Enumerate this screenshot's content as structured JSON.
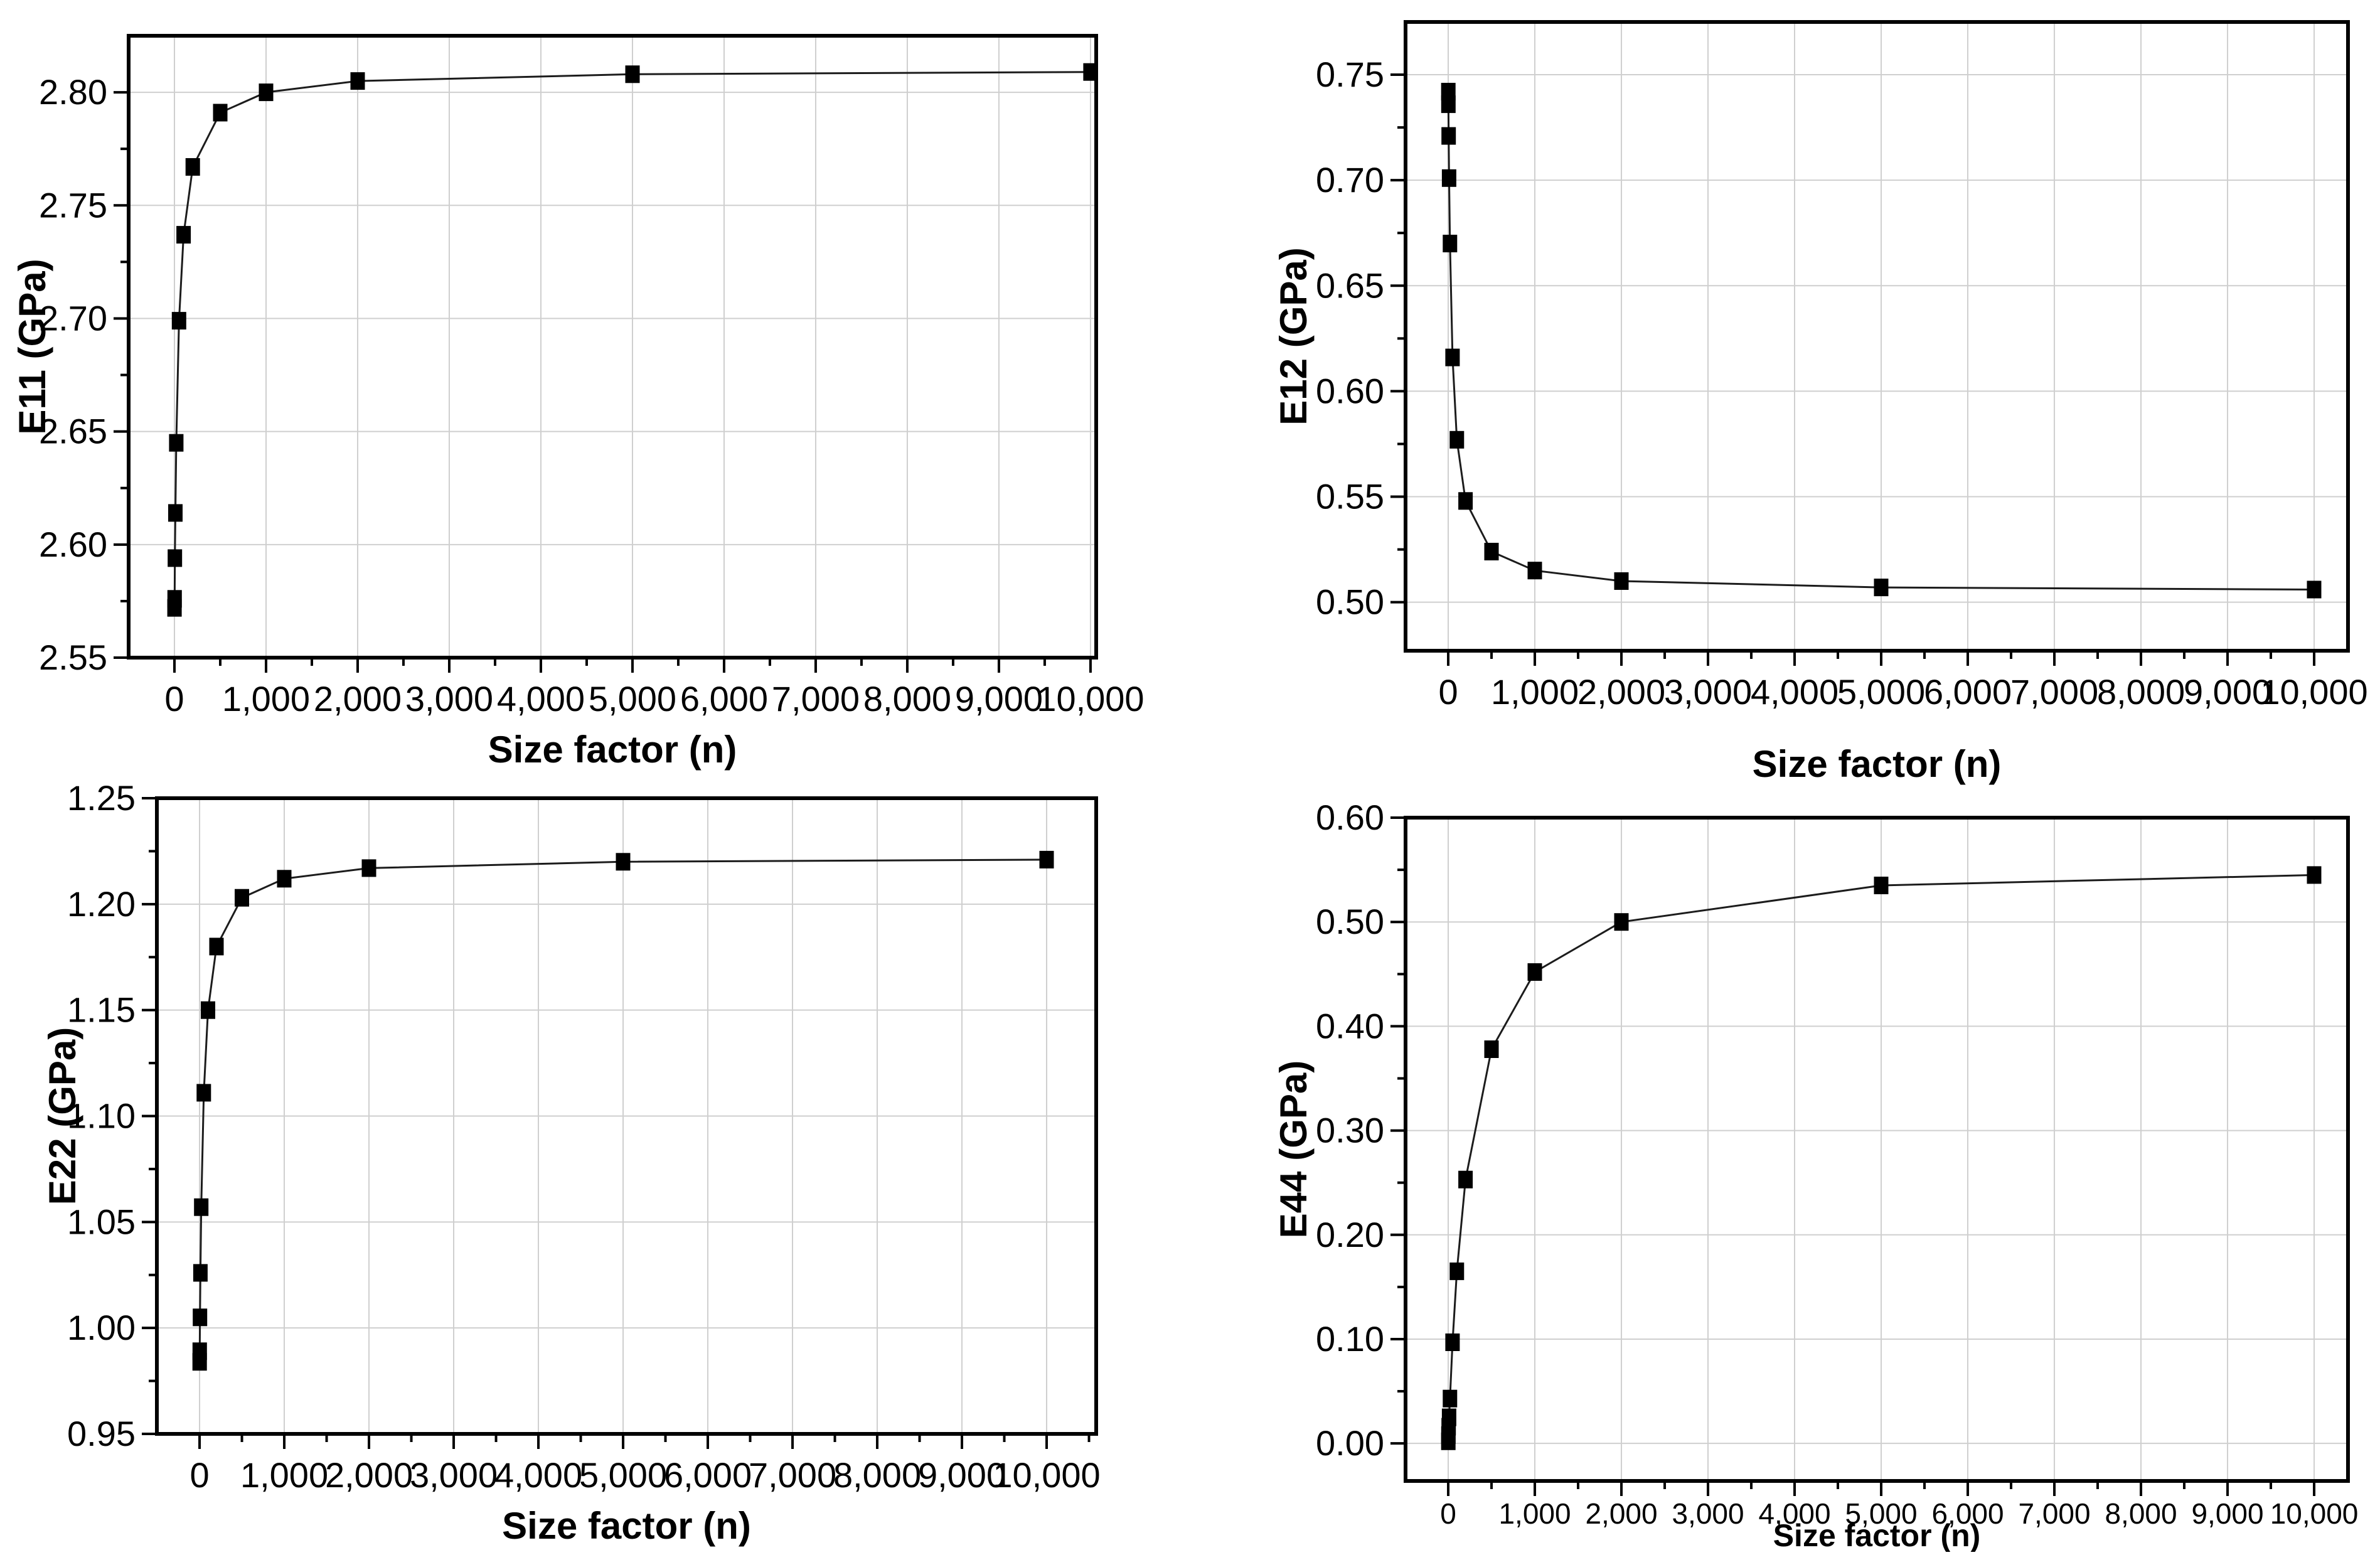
{
  "figure": {
    "background": "#ffffff",
    "panel_ids": [
      "E11",
      "E12",
      "E22",
      "E44"
    ]
  },
  "chart_data": [
    {
      "id": "E11",
      "type": "scatter",
      "title": "",
      "xlabel": "Size factor (n)",
      "ylabel": "E11 (GPa)",
      "x": [
        1,
        2,
        5,
        10,
        20,
        50,
        100,
        200,
        500,
        1000,
        2000,
        5000,
        10000
      ],
      "y": [
        2.572,
        2.576,
        2.594,
        2.614,
        2.645,
        2.699,
        2.737,
        2.767,
        2.791,
        2.8,
        2.805,
        2.808,
        2.809
      ],
      "xlim": [
        -500,
        10062
      ],
      "ylim": [
        2.55,
        2.825
      ],
      "xticks": [
        0,
        1000,
        2000,
        3000,
        4000,
        5000,
        6000,
        7000,
        8000,
        9000,
        10000
      ],
      "xtick_labels": [
        "0",
        "1,000",
        "2,000",
        "3,000",
        "4,000",
        "5,000",
        "6,000",
        "7,000",
        "8,000",
        "9,000",
        "10,000"
      ],
      "yticks": [
        2.55,
        2.6,
        2.65,
        2.7,
        2.75,
        2.8
      ],
      "ytick_labels": [
        "2.55",
        "2.60",
        "2.65",
        "2.70",
        "2.75",
        "2.80"
      ],
      "grid": true,
      "legend": null,
      "marker": "filled-square",
      "marker_color": "#000000",
      "line_color": "#1c1c1c",
      "grid_color": "#cfcfcf",
      "axis_color": "#000000"
    },
    {
      "id": "E12",
      "type": "scatter",
      "title": "",
      "xlabel": "Size factor (n)",
      "ylabel": "E12 (GPa)",
      "x": [
        1,
        2,
        5,
        10,
        20,
        50,
        100,
        200,
        500,
        1000,
        2000,
        5000,
        10000
      ],
      "y": [
        0.742,
        0.736,
        0.721,
        0.701,
        0.67,
        0.616,
        0.577,
        0.548,
        0.524,
        0.515,
        0.51,
        0.507,
        0.506
      ],
      "xlim": [
        -493,
        10391
      ],
      "ylim": [
        0.477,
        0.775
      ],
      "xticks": [
        0,
        1000,
        2000,
        3000,
        4000,
        5000,
        6000,
        7000,
        8000,
        9000,
        10000
      ],
      "xtick_labels": [
        "0",
        "1,000",
        "2,000",
        "3,000",
        "4,000",
        "5,000",
        "6,000",
        "7,000",
        "8,000",
        "9,000",
        "10,000"
      ],
      "yticks": [
        0.5,
        0.55,
        0.6,
        0.65,
        0.7,
        0.75
      ],
      "ytick_labels": [
        "0.50",
        "0.55",
        "0.60",
        "0.65",
        "0.70",
        "0.75"
      ],
      "grid": true,
      "legend": null,
      "marker": "filled-square",
      "marker_color": "#000000",
      "line_color": "#1c1c1c",
      "grid_color": "#cfcfcf",
      "axis_color": "#000000"
    },
    {
      "id": "E22",
      "type": "scatter",
      "title": "",
      "xlabel": "Size factor (n)",
      "ylabel": "E22 (GPa)",
      "x": [
        1,
        2,
        5,
        10,
        20,
        50,
        100,
        200,
        500,
        1000,
        2000,
        5000,
        10000
      ],
      "y": [
        0.984,
        0.989,
        1.005,
        1.026,
        1.057,
        1.111,
        1.15,
        1.18,
        1.203,
        1.212,
        1.217,
        1.22,
        1.221
      ],
      "xlim": [
        -504,
        10585
      ],
      "ylim": [
        0.95,
        1.25
      ],
      "xticks": [
        0,
        1000,
        2000,
        3000,
        4000,
        5000,
        6000,
        7000,
        8000,
        9000,
        10000
      ],
      "xtick_labels": [
        "0",
        "1,000",
        "2,000",
        "3,000",
        "4,000",
        "5,000",
        "6,000",
        "7,000",
        "8,000",
        "9,000",
        "10,000"
      ],
      "yticks": [
        0.95,
        1.0,
        1.05,
        1.1,
        1.15,
        1.2,
        1.25
      ],
      "ytick_labels": [
        "0.95",
        "1.00",
        "1.05",
        "1.10",
        "1.15",
        "1.20",
        "1.25"
      ],
      "grid": true,
      "legend": null,
      "marker": "filled-square",
      "marker_color": "#000000",
      "line_color": "#1c1c1c",
      "grid_color": "#cfcfcf",
      "axis_color": "#000000"
    },
    {
      "id": "E44",
      "type": "scatter",
      "title": "",
      "xlabel": "Size factor (n)",
      "ylabel": "E44 (GPa)",
      "x": [
        1,
        2,
        5,
        10,
        20,
        50,
        100,
        200,
        500,
        1000,
        2000,
        5000,
        10000
      ],
      "y": [
        0.002,
        0.008,
        0.016,
        0.025,
        0.043,
        0.097,
        0.165,
        0.253,
        0.378,
        0.452,
        0.5,
        0.535,
        0.545
      ],
      "xlim": [
        -493,
        10391
      ],
      "ylim": [
        -0.036,
        0.6
      ],
      "xticks": [
        0,
        1000,
        2000,
        3000,
        4000,
        5000,
        6000,
        7000,
        8000,
        9000,
        10000
      ],
      "xtick_labels": [
        "0",
        "1,000",
        "2,000",
        "3,000",
        "4,000",
        "5,000",
        "6,000",
        "7,000",
        "8,000",
        "9,000",
        "10,000"
      ],
      "yticks": [
        0.0,
        0.1,
        0.2,
        0.3,
        0.4,
        0.5,
        0.6
      ],
      "ytick_labels": [
        "0.00",
        "0.10",
        "0.20",
        "0.30",
        "0.40",
        "0.50",
        "0.60"
      ],
      "grid": true,
      "legend": null,
      "marker": "filled-square",
      "marker_color": "#000000",
      "line_color": "#1c1c1c",
      "grid_color": "#cfcfcf",
      "axis_color": "#000000"
    }
  ]
}
